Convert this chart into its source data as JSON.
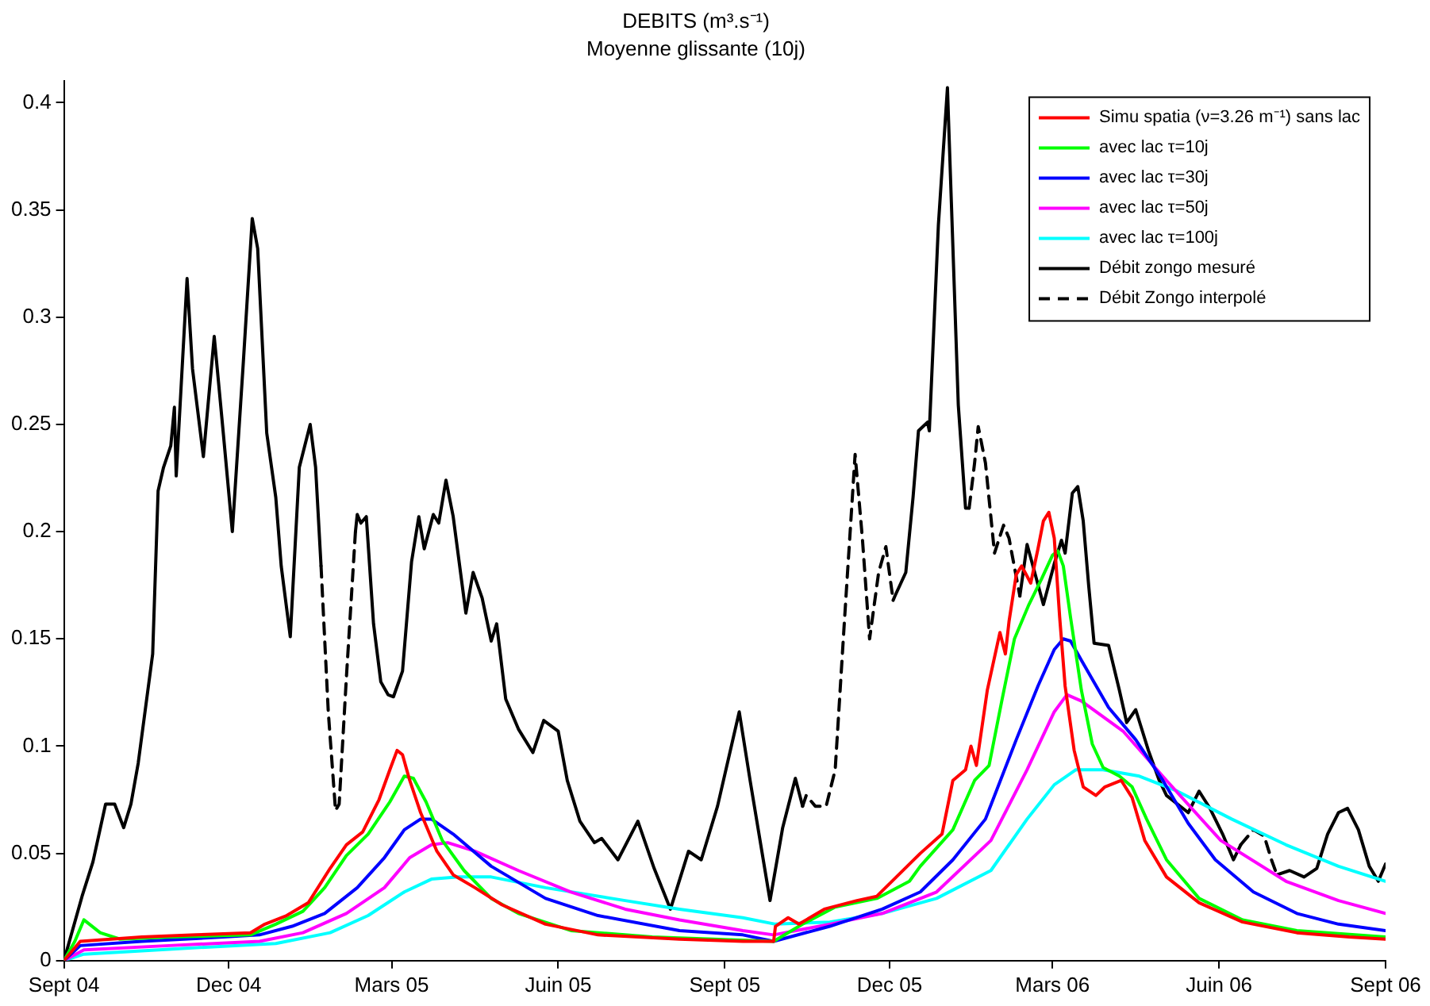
{
  "chart_data": {
    "type": "line",
    "title": "DEBITS (m³.s⁻¹)",
    "subtitle": "Moyenne glissante (10j)",
    "xlim": [
      "2004-09-01",
      "2006-09-01"
    ],
    "xticks": [
      {
        "value": "2004-09-01",
        "label": "Sept 04"
      },
      {
        "value": "2004-12-01",
        "label": "Dec 04"
      },
      {
        "value": "2005-03-01",
        "label": "Mars 05"
      },
      {
        "value": "2005-06-01",
        "label": "Juin 05"
      },
      {
        "value": "2005-09-01",
        "label": "Sept 05"
      },
      {
        "value": "2005-12-01",
        "label": "Dec 05"
      },
      {
        "value": "2006-03-01",
        "label": "Mars 06"
      },
      {
        "value": "2006-06-01",
        "label": "Juin 06"
      },
      {
        "value": "2006-09-01",
        "label": "Sept 06"
      }
    ],
    "ylim": [
      0,
      0.41
    ],
    "yticks": [
      0,
      0.05,
      0.1,
      0.15,
      0.2,
      0.25,
      0.3,
      0.35,
      0.4
    ],
    "grid": false,
    "legend": "top right",
    "line_style": "solid",
    "series": [
      {
        "name": "Simu spatia (ν=3.26 m⁻¹) sans lac",
        "color": "#ff0000",
        "x": [
          "2004-09-01",
          "2004-09-10",
          "2004-10-14",
          "2004-11-13",
          "2004-12-13",
          "2004-12-21",
          "2005-01-02",
          "2005-01-14",
          "2005-01-26",
          "2005-02-04",
          "2005-02-13",
          "2005-02-22",
          "2005-02-28",
          "2005-03-04",
          "2005-03-07",
          "2005-03-11",
          "2005-03-17",
          "2005-03-26",
          "2005-04-04",
          "2005-04-16",
          "2005-05-01",
          "2005-05-25",
          "2005-06-23",
          "2005-08-07",
          "2005-09-11",
          "2005-09-28",
          "2005-09-29",
          "2005-10-06",
          "2005-10-12",
          "2005-10-26",
          "2005-11-13",
          "2005-11-24",
          "2005-12-06",
          "2005-12-18",
          "2005-12-30",
          "2006-01-05",
          "2006-01-12",
          "2006-01-15",
          "2006-01-18",
          "2006-01-24",
          "2006-01-31",
          "2006-02-03",
          "2006-02-05",
          "2006-02-09",
          "2006-02-12",
          "2006-02-17",
          "2006-02-21",
          "2006-02-24",
          "2006-02-27",
          "2006-03-02",
          "2006-03-05",
          "2006-03-08",
          "2006-03-13",
          "2006-03-18",
          "2006-03-25",
          "2006-03-30",
          "2006-04-08",
          "2006-04-14",
          "2006-04-21",
          "2006-05-03",
          "2006-05-21",
          "2006-06-14",
          "2006-07-14",
          "2006-08-12",
          "2006-09-01"
        ],
        "values": [
          0,
          0.009,
          0.011,
          0.012,
          0.013,
          0.017,
          0.021,
          0.027,
          0.043,
          0.054,
          0.06,
          0.075,
          0.089,
          0.098,
          0.096,
          0.084,
          0.069,
          0.051,
          0.04,
          0.034,
          0.026,
          0.017,
          0.012,
          0.01,
          0.009,
          0.009,
          0.016,
          0.02,
          0.017,
          0.024,
          0.028,
          0.03,
          0.04,
          0.05,
          0.059,
          0.084,
          0.089,
          0.1,
          0.091,
          0.126,
          0.153,
          0.143,
          0.158,
          0.18,
          0.184,
          0.176,
          0.192,
          0.205,
          0.209,
          0.197,
          0.16,
          0.128,
          0.098,
          0.081,
          0.077,
          0.081,
          0.084,
          0.076,
          0.056,
          0.039,
          0.027,
          0.018,
          0.013,
          0.011,
          0.01
        ]
      },
      {
        "name": "avec lac τ=10j",
        "color": "#00ff00",
        "x": [
          "2004-09-01",
          "2004-09-07",
          "2004-09-12",
          "2004-09-21",
          "2004-10-02",
          "2004-10-29",
          "2004-12-13",
          "2004-12-27",
          "2005-01-11",
          "2005-01-23",
          "2005-02-04",
          "2005-02-16",
          "2005-02-28",
          "2005-03-08",
          "2005-03-13",
          "2005-03-20",
          "2005-03-29",
          "2005-04-10",
          "2005-04-25",
          "2005-05-10",
          "2005-06-08",
          "2005-07-23",
          "2005-09-28",
          "2005-10-14",
          "2005-11-01",
          "2005-11-24",
          "2005-12-12",
          "2005-12-18",
          "2006-01-05",
          "2006-01-17",
          "2006-01-25",
          "2006-02-01",
          "2006-02-08",
          "2006-02-16",
          "2006-02-23",
          "2006-03-01",
          "2006-03-04",
          "2006-03-07",
          "2006-03-11",
          "2006-03-17",
          "2006-03-23",
          "2006-03-29",
          "2006-04-07",
          "2006-04-14",
          "2006-04-22",
          "2006-05-03",
          "2006-05-21",
          "2006-06-14",
          "2006-07-14",
          "2006-09-01"
        ],
        "values": [
          0,
          0.009,
          0.019,
          0.013,
          0.01,
          0.011,
          0.012,
          0.017,
          0.023,
          0.034,
          0.049,
          0.059,
          0.074,
          0.086,
          0.085,
          0.074,
          0.056,
          0.042,
          0.029,
          0.022,
          0.014,
          0.011,
          0.009,
          0.017,
          0.025,
          0.029,
          0.037,
          0.044,
          0.061,
          0.084,
          0.091,
          0.121,
          0.15,
          0.166,
          0.178,
          0.189,
          0.191,
          0.184,
          0.16,
          0.126,
          0.101,
          0.09,
          0.086,
          0.081,
          0.066,
          0.047,
          0.029,
          0.019,
          0.014,
          0.011
        ]
      },
      {
        "name": "avec lac τ=30j",
        "color": "#0000ff",
        "x": [
          "2004-09-01",
          "2004-09-10",
          "2004-10-14",
          "2004-11-28",
          "2004-12-18",
          "2005-01-05",
          "2005-01-23",
          "2005-02-10",
          "2005-02-25",
          "2005-03-08",
          "2005-03-17",
          "2005-03-23",
          "2005-04-04",
          "2005-04-25",
          "2005-05-25",
          "2005-06-23",
          "2005-08-07",
          "2005-09-11",
          "2005-09-28",
          "2005-10-29",
          "2005-11-27",
          "2005-12-18",
          "2006-01-05",
          "2006-01-23",
          "2006-02-09",
          "2006-02-21",
          "2006-03-02",
          "2006-03-07",
          "2006-03-11",
          "2006-03-17",
          "2006-04-01",
          "2006-04-16",
          "2006-05-01",
          "2006-05-15",
          "2006-05-30",
          "2006-06-20",
          "2006-07-14",
          "2006-08-06",
          "2006-09-01"
        ],
        "values": [
          0,
          0.007,
          0.009,
          0.011,
          0.012,
          0.016,
          0.022,
          0.034,
          0.048,
          0.061,
          0.066,
          0.066,
          0.059,
          0.044,
          0.029,
          0.021,
          0.014,
          0.012,
          0.009,
          0.016,
          0.024,
          0.032,
          0.047,
          0.066,
          0.103,
          0.128,
          0.145,
          0.15,
          0.149,
          0.14,
          0.118,
          0.103,
          0.084,
          0.064,
          0.047,
          0.032,
          0.022,
          0.017,
          0.014
        ]
      },
      {
        "name": "avec lac τ=50j",
        "color": "#ff00ff",
        "x": [
          "2004-09-01",
          "2004-09-12",
          "2004-10-29",
          "2004-12-18",
          "2005-01-11",
          "2005-02-04",
          "2005-02-25",
          "2005-03-11",
          "2005-03-23",
          "2005-04-01",
          "2005-04-16",
          "2005-05-10",
          "2005-06-08",
          "2005-07-08",
          "2005-08-07",
          "2005-09-11",
          "2005-09-28",
          "2005-10-29",
          "2005-11-27",
          "2005-12-27",
          "2006-01-26",
          "2006-02-15",
          "2006-03-02",
          "2006-03-09",
          "2006-03-17",
          "2006-04-09",
          "2006-05-03",
          "2006-06-02",
          "2006-07-08",
          "2006-08-06",
          "2006-09-01"
        ],
        "values": [
          0,
          0.005,
          0.007,
          0.009,
          0.013,
          0.022,
          0.034,
          0.048,
          0.054,
          0.055,
          0.051,
          0.042,
          0.032,
          0.024,
          0.019,
          0.014,
          0.012,
          0.017,
          0.022,
          0.032,
          0.056,
          0.089,
          0.116,
          0.124,
          0.121,
          0.107,
          0.084,
          0.056,
          0.037,
          0.028,
          0.022
        ]
      },
      {
        "name": "avec lac τ=100j",
        "color": "#00ffff",
        "x": [
          "2004-09-01",
          "2004-09-12",
          "2004-11-13",
          "2004-12-27",
          "2005-01-26",
          "2005-02-16",
          "2005-03-08",
          "2005-03-23",
          "2005-04-07",
          "2005-04-25",
          "2005-05-25",
          "2005-07-08",
          "2005-08-07",
          "2005-09-11",
          "2005-09-29",
          "2005-10-29",
          "2005-11-27",
          "2005-12-27",
          "2006-01-26",
          "2006-02-15",
          "2006-03-02",
          "2006-03-14",
          "2006-03-29",
          "2006-04-18",
          "2006-05-09",
          "2006-06-08",
          "2006-07-08",
          "2006-08-06",
          "2006-09-01"
        ],
        "values": [
          0,
          0.003,
          0.006,
          0.008,
          0.013,
          0.021,
          0.032,
          0.038,
          0.039,
          0.039,
          0.034,
          0.028,
          0.024,
          0.02,
          0.017,
          0.018,
          0.022,
          0.029,
          0.042,
          0.066,
          0.082,
          0.089,
          0.089,
          0.086,
          0.079,
          0.066,
          0.054,
          0.044,
          0.037
        ]
      },
      {
        "name": "Débit zongo mesuré",
        "color": "#000000",
        "x": [
          "2004-09-01",
          "2004-09-11",
          "2004-09-17",
          "2004-09-24",
          "2004-09-29",
          "2004-10-04",
          "2004-10-08",
          "2004-10-12",
          "2004-10-20",
          "2004-10-23",
          "2004-10-26",
          "2004-10-30",
          "2004-11-01",
          "2004-11-02",
          "2004-11-08",
          "2004-11-11",
          "2004-11-17",
          "2004-11-23",
          "2004-11-28",
          "2004-12-03",
          "2004-12-09",
          "2004-12-14",
          "2004-12-17",
          "2004-12-22",
          "2004-12-27",
          "2004-12-30",
          "2005-01-04",
          "2005-01-09",
          "2005-01-15",
          "2005-01-18",
          "2005-01-21",
          "2005-01-30",
          "2005-02-09",
          "2005-02-10",
          "2005-02-12",
          "2005-02-15",
          "2005-02-19",
          "2005-02-23",
          "2005-02-27",
          "2005-03-02",
          "2005-03-07",
          "2005-03-12",
          "2005-03-16",
          "2005-03-19",
          "2005-03-24",
          "2005-03-27",
          "2005-03-31",
          "2005-04-04",
          "2005-04-11",
          "2005-04-15",
          "2005-04-20",
          "2005-04-25",
          "2005-04-28",
          "2005-05-03",
          "2005-05-10",
          "2005-05-18",
          "2005-05-24",
          "2005-06-01",
          "2005-06-06",
          "2005-06-13",
          "2005-06-21",
          "2005-06-25",
          "2005-07-04",
          "2005-07-15",
          "2005-07-24",
          "2005-08-02",
          "2005-08-12",
          "2005-08-19",
          "2005-08-28",
          "2005-09-09",
          "2005-09-15",
          "2005-09-26",
          "2005-10-03",
          "2005-10-10",
          "2005-10-14",
          "2005-11-10",
          "2005-12-03",
          "2005-12-04",
          "2005-12-10",
          "2005-12-14",
          "2005-12-17",
          "2005-12-22",
          "2005-12-23",
          "2005-12-28",
          "2006-01-02",
          "2006-01-08",
          "2006-01-12",
          "2006-01-14",
          "2006-01-28",
          "2006-02-11",
          "2006-02-15",
          "2006-02-24",
          "2006-03-02",
          "2006-03-06",
          "2006-03-08",
          "2006-03-12",
          "2006-03-15",
          "2006-03-18",
          "2006-03-21",
          "2006-03-24",
          "2006-04-01",
          "2006-04-07",
          "2006-04-11",
          "2006-04-16",
          "2006-04-23",
          "2006-04-29",
          "2006-05-03",
          "2006-05-15",
          "2006-05-21",
          "2006-05-27",
          "2006-06-03",
          "2006-06-09",
          "2006-06-13",
          "2006-06-22",
          "2006-07-03",
          "2006-07-10",
          "2006-07-18",
          "2006-07-25",
          "2006-07-31",
          "2006-08-06",
          "2006-08-11",
          "2006-08-17",
          "2006-08-23",
          "2006-08-28",
          "2006-09-01"
        ],
        "values": [
          0,
          0.03,
          0.046,
          0.073,
          0.073,
          0.062,
          0.073,
          0.092,
          0.143,
          0.219,
          0.23,
          0.24,
          0.258,
          0.226,
          0.318,
          0.276,
          0.235,
          0.291,
          0.246,
          0.2,
          0.278,
          0.346,
          0.332,
          0.246,
          0.216,
          0.184,
          0.151,
          0.23,
          0.25,
          0.23,
          0.184,
          null,
          0.2,
          0.208,
          0.204,
          0.207,
          0.157,
          0.13,
          0.124,
          0.123,
          0.135,
          0.186,
          0.207,
          0.192,
          0.208,
          0.204,
          0.224,
          0.207,
          0.162,
          0.181,
          0.169,
          0.149,
          0.157,
          0.122,
          0.108,
          0.097,
          0.112,
          0.107,
          0.084,
          0.065,
          0.055,
          0.057,
          0.047,
          0.065,
          0.043,
          0.024,
          0.051,
          0.047,
          0.072,
          0.116,
          0.084,
          0.028,
          0.062,
          0.085,
          0.072,
          null,
          0.168,
          0.17,
          0.181,
          0.216,
          0.247,
          0.251,
          0.247,
          0.343,
          0.407,
          0.259,
          0.211,
          0.211,
          null,
          0.17,
          0.194,
          0.166,
          0.185,
          0.196,
          0.19,
          0.218,
          0.221,
          0.205,
          0.175,
          0.148,
          0.147,
          0.126,
          0.111,
          0.117,
          0.098,
          0.084,
          0.077,
          0.069,
          0.079,
          0.071,
          0.059,
          0.047,
          0.054,
          null,
          0.04,
          0.042,
          0.039,
          0.043,
          0.059,
          0.069,
          0.071,
          0.061,
          0.044,
          0.037,
          0.045
        ]
      },
      {
        "name": "Débit Zongo interpolé",
        "color": "#000000",
        "line_style": "dashed",
        "x": [
          "2005-01-21",
          "2005-01-25",
          "2005-01-29",
          "2005-01-31",
          "2005-02-04",
          "2005-02-09",
          "2005-05-01",
          "2005-10-14",
          "2005-10-16",
          "2005-10-21",
          "2005-10-27",
          "2005-11-01",
          "2005-11-06",
          "2005-11-12",
          "2005-11-16",
          "2005-11-20",
          "2005-11-25",
          "2005-11-29",
          "2005-12-03",
          "2005-12-25",
          "2006-01-14",
          "2006-01-17",
          "2006-01-19",
          "2006-01-23",
          "2006-01-28",
          "2006-02-02",
          "2006-02-05",
          "2006-02-09",
          "2006-02-11",
          "2006-04-20",
          "2006-06-13",
          "2006-06-20",
          "2006-06-26",
          "2006-06-30",
          "2006-07-03"
        ],
        "values": [
          0.184,
          0.116,
          0.07,
          0.073,
          0.132,
          0.2,
          null,
          0.072,
          0.077,
          0.072,
          0.072,
          0.089,
          0.157,
          0.236,
          0.197,
          0.15,
          0.181,
          0.193,
          0.168,
          null,
          0.211,
          0.232,
          0.249,
          0.232,
          0.19,
          0.203,
          0.197,
          0.179,
          0.17,
          null,
          0.054,
          0.061,
          0.058,
          0.047,
          0.04
        ]
      }
    ]
  }
}
